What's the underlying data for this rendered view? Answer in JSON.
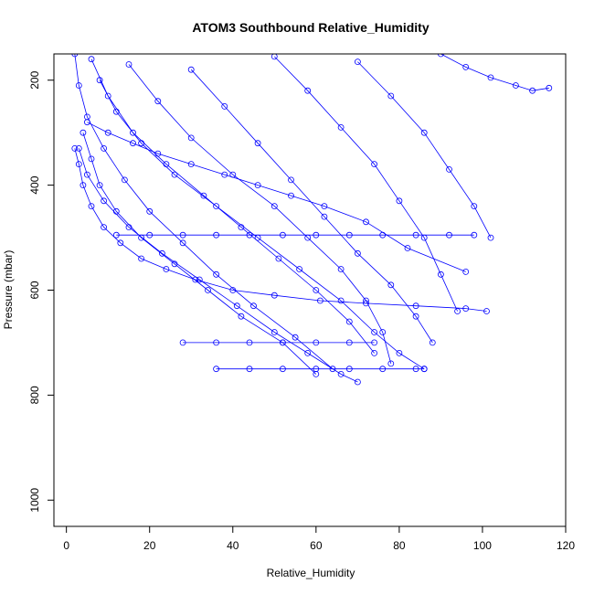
{
  "chart_data": {
    "type": "scatter",
    "title": "ATOM3 Southbound Relative_Humidity",
    "xlabel": "Relative_Humidity",
    "ylabel": "Pressure (mbar)",
    "xlim": [
      -3,
      120
    ],
    "ylim": [
      1050,
      150
    ],
    "y_reversed": true,
    "x_ticks": [
      0,
      20,
      40,
      60,
      80,
      100,
      120
    ],
    "y_ticks": [
      200,
      400,
      600,
      800,
      1000
    ],
    "grid": false,
    "legend": "none",
    "point_color": "#0000ff",
    "marker": "open-circle",
    "connected": true,
    "profiles": [
      {
        "x": [
          2,
          3,
          5,
          9,
          14,
          20,
          28,
          36,
          45,
          55,
          64
        ],
        "y": [
          150,
          210,
          270,
          330,
          390,
          450,
          510,
          570,
          630,
          690,
          750
        ]
      },
      {
        "x": [
          6,
          10,
          16,
          24,
          33,
          42,
          51,
          60,
          68,
          74
        ],
        "y": [
          160,
          230,
          300,
          360,
          420,
          480,
          540,
          600,
          660,
          720
        ]
      },
      {
        "x": [
          15,
          22,
          30,
          40,
          50,
          58,
          66,
          72,
          76,
          78
        ],
        "y": [
          170,
          240,
          310,
          380,
          440,
          500,
          560,
          620,
          680,
          740
        ]
      },
      {
        "x": [
          30,
          38,
          46,
          54,
          62,
          70,
          78,
          84,
          88
        ],
        "y": [
          180,
          250,
          320,
          390,
          460,
          530,
          590,
          650,
          700
        ]
      },
      {
        "x": [
          50,
          58,
          66,
          74,
          80,
          86,
          90,
          94
        ],
        "y": [
          155,
          220,
          290,
          360,
          430,
          500,
          570,
          640
        ]
      },
      {
        "x": [
          70,
          78,
          86,
          92,
          98,
          102
        ],
        "y": [
          165,
          230,
          300,
          370,
          440,
          500
        ]
      },
      {
        "x": [
          90,
          96,
          102,
          108,
          112,
          116
        ],
        "y": [
          150,
          175,
          195,
          210,
          220,
          215
        ]
      },
      {
        "x": [
          4,
          6,
          8,
          12,
          18,
          26,
          34,
          42,
          52,
          60
        ],
        "y": [
          300,
          350,
          400,
          450,
          500,
          550,
          600,
          650,
          700,
          760
        ]
      },
      {
        "x": [
          3,
          5,
          9,
          15,
          23,
          32,
          41,
          50,
          58,
          66,
          70
        ],
        "y": [
          330,
          380,
          430,
          480,
          530,
          580,
          630,
          680,
          720,
          760,
          775
        ]
      },
      {
        "x": [
          8,
          12,
          18,
          26,
          36,
          46,
          56,
          66,
          74,
          80,
          86
        ],
        "y": [
          200,
          260,
          320,
          380,
          440,
          500,
          560,
          620,
          680,
          720,
          750
        ]
      },
      {
        "x": [
          36,
          44,
          52,
          60,
          68,
          76,
          84,
          86
        ],
        "y": [
          750,
          750,
          750,
          750,
          750,
          750,
          750,
          750
        ]
      },
      {
        "x": [
          28,
          36,
          44,
          52,
          60,
          68,
          74
        ],
        "y": [
          700,
          700,
          700,
          700,
          700,
          700,
          700
        ]
      },
      {
        "x": [
          12,
          20,
          28,
          36,
          44,
          52,
          60,
          68,
          76,
          84,
          92,
          98
        ],
        "y": [
          495,
          495,
          495,
          495,
          495,
          495,
          495,
          495,
          495,
          495,
          495,
          495
        ]
      },
      {
        "x": [
          5,
          10,
          16,
          22,
          30,
          38,
          46,
          54,
          62,
          72,
          82,
          96
        ],
        "y": [
          280,
          300,
          320,
          340,
          360,
          380,
          400,
          420,
          440,
          470,
          520,
          565
        ]
      },
      {
        "x": [
          2,
          3,
          4,
          6,
          9,
          13,
          18,
          24,
          31,
          40,
          50,
          61,
          72,
          84,
          96,
          101
        ],
        "y": [
          330,
          360,
          400,
          440,
          480,
          510,
          540,
          560,
          580,
          600,
          610,
          620,
          625,
          630,
          635,
          640
        ]
      }
    ]
  }
}
